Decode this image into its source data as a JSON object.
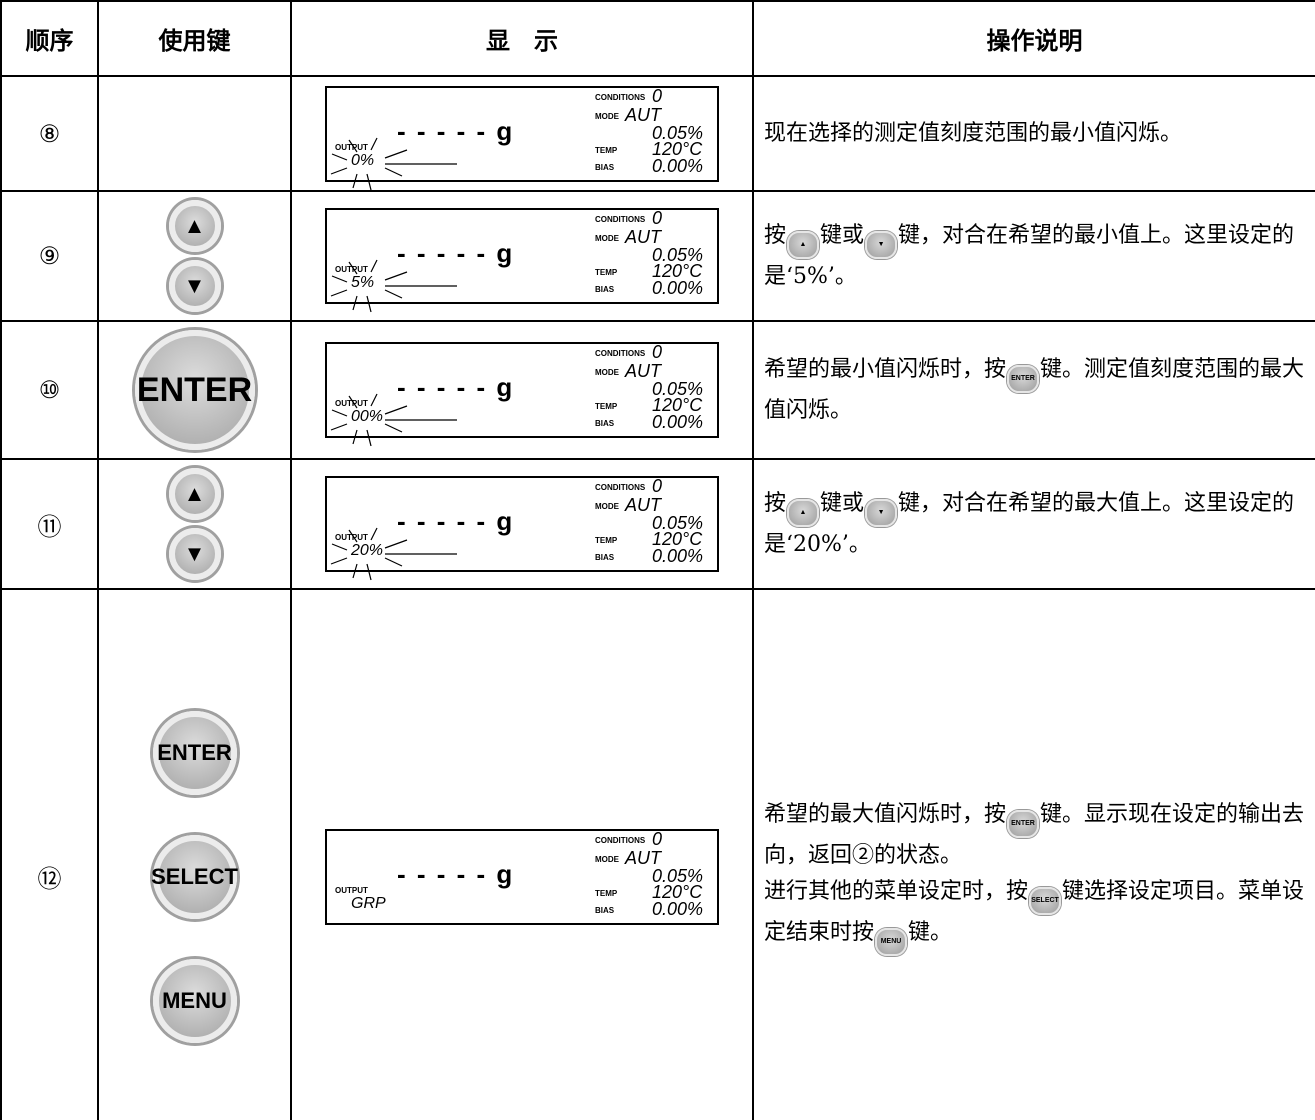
{
  "table": {
    "header": [
      "顺序",
      "使用键",
      "显　示",
      "操作说明"
    ],
    "rows": [
      {
        "step": "⑧",
        "keys": [],
        "display": {
          "conditions_label": "CONDITIONS",
          "conditions": "0",
          "mode_label": "MODE",
          "mode": "AUT",
          "value": "0.05%",
          "temp_label": "TEMP",
          "temp": "120°C",
          "bias_label": "BIAS",
          "bias": "0.00%",
          "weight": "- - - - - g",
          "output_label": "OUTPUT",
          "output": "0%"
        },
        "description": [
          [
            {
              "text": "现在选择的测定值刻度范围的最小值闪烁。"
            }
          ]
        ]
      },
      {
        "step": "⑨",
        "keys": [
          "▲",
          "▼"
        ],
        "display": {
          "conditions_label": "CONDITIONS",
          "conditions": "0",
          "mode_label": "MODE",
          "mode": "AUT",
          "value": "0.05%",
          "temp_label": "TEMP",
          "temp": "120°C",
          "bias_label": "BIAS",
          "bias": "0.00%",
          "weight": "- - - - - g",
          "output_label": "OUTPUT",
          "output": "5%"
        },
        "description": [
          [
            {
              "text": "按"
            },
            {
              "key": "▲"
            },
            {
              "text": "键或"
            },
            {
              "key": "▼"
            },
            {
              "text": "键，对合在希望的最小值上。这里设定的是‘5%’。"
            }
          ]
        ]
      },
      {
        "step": "⑩",
        "keys": [
          "ENTER"
        ],
        "display": {
          "conditions_label": "CONDITIONS",
          "conditions": "0",
          "mode_label": "MODE",
          "mode": "AUT",
          "value": "0.05%",
          "temp_label": "TEMP",
          "temp": "120°C",
          "bias_label": "BIAS",
          "bias": "0.00%",
          "weight": "- - - - - g",
          "output_label": "OUTPUT",
          "output": "00%"
        },
        "description": [
          [
            {
              "text": "希望的最小值闪烁时，按"
            },
            {
              "key": "ENTER"
            },
            {
              "text": "键。测定值刻度范围的最大值闪烁。"
            }
          ]
        ]
      },
      {
        "step": "⑪",
        "keys": [
          "▲",
          "▼"
        ],
        "display": {
          "conditions_label": "CONDITIONS",
          "conditions": "0",
          "mode_label": "MODE",
          "mode": "AUT",
          "value": "0.05%",
          "temp_label": "TEMP",
          "temp": "120°C",
          "bias_label": "BIAS",
          "bias": "0.00%",
          "weight": "- - - - - g",
          "output_label": "OUTPUT",
          "output": "20%"
        },
        "description": [
          [
            {
              "text": "按"
            },
            {
              "key": "▲"
            },
            {
              "text": "键或"
            },
            {
              "key": "▼"
            },
            {
              "text": "键，对合在希望的最大值上。这里设定的是‘20%’。"
            }
          ]
        ]
      },
      {
        "step": "⑫",
        "keys": [
          "ENTER",
          "SELECT",
          "MENU"
        ],
        "display": {
          "conditions_label": "CONDITIONS",
          "conditions": "0",
          "mode_label": "MODE",
          "mode": "AUT",
          "value": "0.05%",
          "temp_label": "TEMP",
          "temp": "120°C",
          "bias_label": "BIAS",
          "bias": "0.00%",
          "weight": "- - - - - g",
          "output_label": "OUTPUT",
          "output": "GRP"
        },
        "description": [
          [
            {
              "text": "希望的最大值闪烁时，按"
            },
            {
              "key": "ENTER"
            },
            {
              "text": "键。显示现在设定的输出去向，返回②的状态。"
            }
          ],
          [
            {
              "text": "进行其他的菜单设定时，按"
            },
            {
              "key": "SELECT"
            },
            {
              "text": "键选择设定项目。菜单设定结束时按"
            },
            {
              "key": "MENU"
            },
            {
              "text": "键。"
            }
          ]
        ]
      }
    ]
  }
}
